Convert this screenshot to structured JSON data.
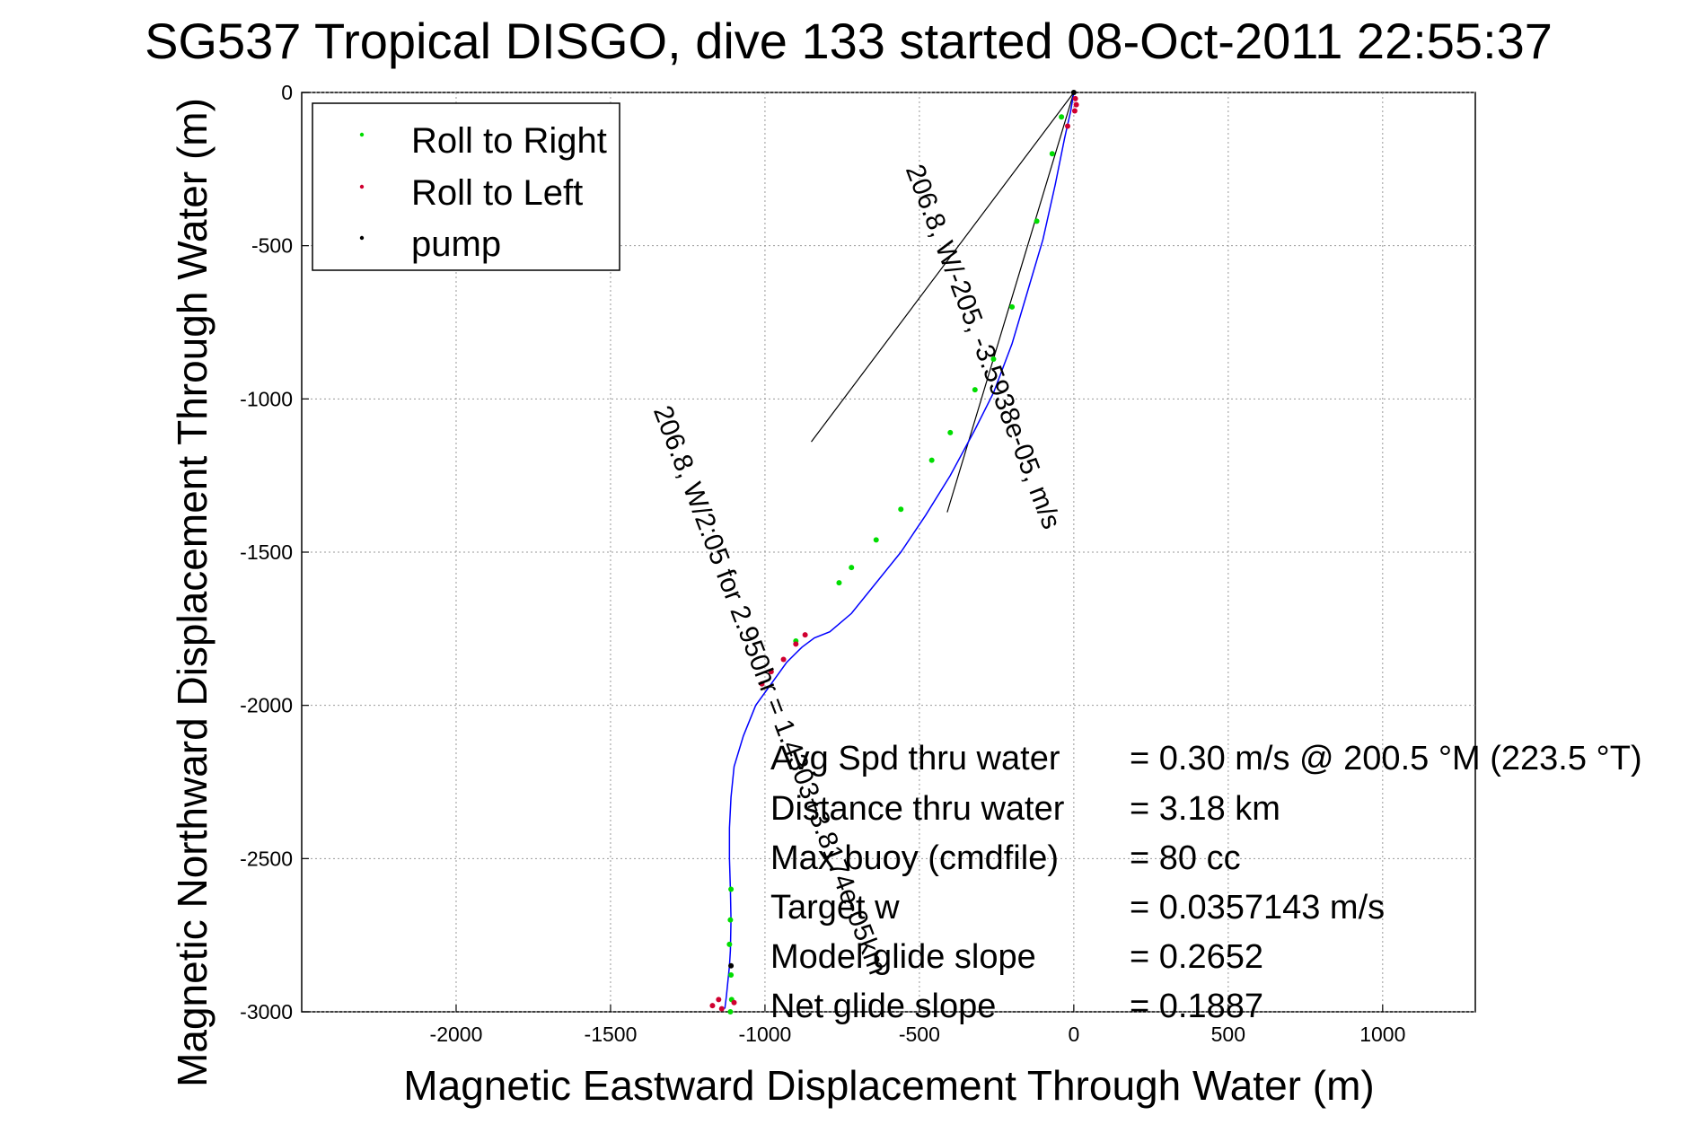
{
  "chart_data": {
    "type": "line",
    "title": "SG537 Tropical DISGO, dive 133 started 08-Oct-2011 22:55:37",
    "xlabel": "Magnetic Eastward Displacement Through Water (m)",
    "ylabel": "Magnetic Northward Displacement Through Water (m)",
    "xlim": [
      -2500,
      1300
    ],
    "ylim": [
      -3000,
      0
    ],
    "xticks": [
      -2000,
      -1500,
      -1000,
      -500,
      0,
      500,
      1000
    ],
    "yticks": [
      0,
      -500,
      -1000,
      -1500,
      -2000,
      -2500,
      -3000
    ],
    "grid": true,
    "legend_position": "top-left",
    "legend": [
      {
        "name": "Roll to Right",
        "color": "#00dd00"
      },
      {
        "name": "Roll to Left",
        "color": "#d00030"
      },
      {
        "name": "pump",
        "color": "#000000"
      }
    ],
    "track_color": "#0000ff",
    "track": {
      "x": [
        0,
        -10,
        -30,
        -60,
        -100,
        -150,
        -200,
        -260,
        -320,
        -400,
        -480,
        -560,
        -640,
        -720,
        -790,
        -840,
        -880,
        -930,
        -980,
        -1030,
        -1070,
        -1100,
        -1110,
        -1115,
        -1115,
        -1112,
        -1110,
        -1112,
        -1115,
        -1120,
        -1125,
        -1130
      ],
      "y": [
        0,
        -60,
        -150,
        -300,
        -480,
        -650,
        -820,
        -980,
        -1100,
        -1250,
        -1380,
        -1500,
        -1600,
        -1700,
        -1760,
        -1780,
        -1810,
        -1860,
        -1930,
        -2000,
        -2100,
        -2200,
        -2300,
        -2400,
        -2500,
        -2600,
        -2700,
        -2800,
        -2850,
        -2900,
        -2950,
        -2990
      ]
    },
    "roll_right_points": {
      "x": [
        -40,
        -70,
        -120,
        -200,
        -260,
        -320,
        -400,
        -460,
        -560,
        -640,
        -720,
        -760,
        -900,
        -1110,
        -1112,
        -1115,
        -1110,
        -1108,
        -1112
      ],
      "y": [
        -80,
        -200,
        -420,
        -700,
        -870,
        -970,
        -1110,
        -1200,
        -1360,
        -1460,
        -1550,
        -1600,
        -1790,
        -2600,
        -2700,
        -2780,
        -2880,
        -2960,
        -3000
      ]
    },
    "roll_left_points": {
      "x": [
        5,
        8,
        3,
        -20,
        -870,
        -900,
        -940,
        -980,
        -1010,
        -1150,
        -1170,
        -1140,
        -1100
      ],
      "y": [
        -20,
        -40,
        -60,
        -110,
        -1770,
        -1800,
        -1850,
        -1890,
        -1930,
        -2960,
        -2980,
        -2990,
        -2970
      ]
    },
    "pump_points": {
      "x": [
        0,
        -1110
      ],
      "y": [
        0,
        -2850
      ]
    },
    "heading_lines": [
      {
        "from": [
          0,
          0
        ],
        "to": [
          -850,
          -1140
        ]
      },
      {
        "from": [
          0,
          0
        ],
        "to": [
          -410,
          -1370
        ]
      }
    ],
    "current_labels": [
      {
        "text": "206.8, W/-205, -3.5938e-05, m/s",
        "anchor": [
          -320,
          -840
        ],
        "rotation_deg": 69
      },
      {
        "text": "206.8, W/2:05 for 2.950hr = 1.4303+3.8174e-05km",
        "anchor": [
          -1010,
          -1960
        ],
        "rotation_deg": 69
      }
    ],
    "annotations": [
      {
        "label": "Avg Spd thru water",
        "value": "=  0.30 m/s @ 200.5 °M (223.5 °T)"
      },
      {
        "label": "Distance thru water",
        "value": "=  3.18 km"
      },
      {
        "label": "Max buoy (cmdfile)",
        "value": "= 80 cc"
      },
      {
        "label": "Target w",
        "value": "= 0.0357143 m/s"
      },
      {
        "label": "Model glide slope",
        "value": "= 0.2652"
      },
      {
        "label": "Net glide slope",
        "value": "= 0.1887"
      }
    ]
  }
}
